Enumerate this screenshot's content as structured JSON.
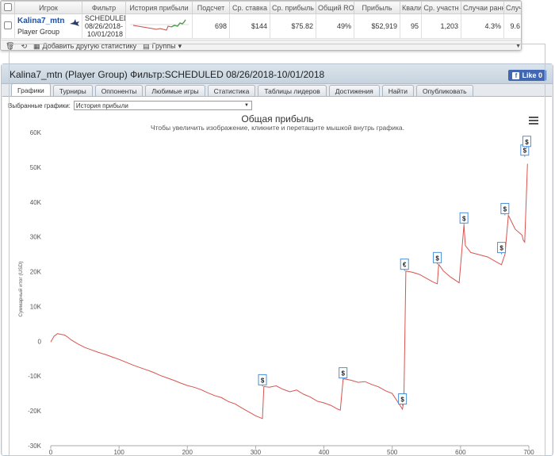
{
  "table": {
    "headers": [
      "",
      "Игрок",
      "Фильтр",
      "История прибыли",
      "Подсчет",
      "Ср. ставка",
      "Ср. прибыль",
      "Общий ROI",
      "Прибыль",
      "Квали",
      "Ср. участн",
      "Случаи ранн",
      "Случаи п"
    ],
    "row": {
      "player_name": "Kalina7_mtn",
      "player_group": "Player Group",
      "filter_line1": "SCHEDULED",
      "filter_line2": "08/26/2018-",
      "filter_line3": "10/01/2018",
      "count": "698",
      "avg_stake": "$144",
      "avg_profit": "$75.82",
      "roi": "49%",
      "profit": "$52,919",
      "quali": "95",
      "avg_entrants": "1,203",
      "early": "4.3%",
      "late": "9.6"
    },
    "toolbar": {
      "add_stats": "Добавить другую статистику",
      "groups": "Группы"
    }
  },
  "panel": {
    "title": "Kalina7_mtn (Player Group) Фильтр:SCHEDULED 08/26/2018-10/01/2018",
    "like_label": "Like 0",
    "fb_letter": "f",
    "tabs": [
      "Графики",
      "Турниры",
      "Оппоненты",
      "Любимые игры",
      "Статистика",
      "Таблицы лидеров",
      "Достижения",
      "Найти",
      "Опубликовать"
    ],
    "selector_label": "Выбранные графики:",
    "selector_value": "История прибыли"
  },
  "chart_data": {
    "type": "line",
    "title": "Общая прибыль",
    "subtitle": "Чтобы увеличить изображение, кликните и перетащите мышкой внутрь графика.",
    "ylabel": "Суммарный итог (USD)",
    "xlim": [
      0,
      700
    ],
    "ylim": [
      -30000,
      60000
    ],
    "xticks": [
      0,
      100,
      200,
      300,
      400,
      500,
      600,
      700
    ],
    "yticks": [
      -30000,
      -20000,
      -10000,
      0,
      10000,
      20000,
      30000,
      40000,
      50000,
      60000
    ],
    "ytick_labels": [
      "-30K",
      "-20K",
      "-10K",
      "0",
      "10K",
      "20K",
      "30K",
      "40K",
      "50K",
      "60K"
    ],
    "line_color": "#d9534f",
    "series": [
      {
        "x": [
          0,
          5,
          10,
          15,
          20,
          25,
          30,
          40,
          50,
          60,
          70,
          80,
          90,
          100,
          110,
          120,
          130,
          140,
          150,
          160,
          170,
          180,
          190,
          200,
          210,
          220,
          230,
          240,
          250,
          260,
          270,
          280,
          290,
          300,
          310,
          312,
          320,
          330,
          340,
          350,
          360,
          370,
          380,
          390,
          400,
          410,
          420,
          424,
          428,
          430,
          440,
          450,
          460,
          470,
          480,
          490,
          500,
          510,
          515,
          517,
          520,
          530,
          540,
          550,
          560,
          566,
          568,
          575,
          585,
          598,
          605,
          607,
          615,
          625,
          640,
          655,
          660,
          665,
          670,
          680,
          690,
          692,
          694,
          698
        ],
        "y": [
          -200,
          1500,
          2200,
          2000,
          1800,
          1200,
          400,
          -800,
          -1800,
          -2500,
          -3200,
          -3800,
          -4500,
          -5200,
          -6000,
          -6800,
          -7500,
          -8200,
          -8900,
          -9800,
          -10500,
          -11200,
          -12000,
          -12700,
          -13200,
          -13900,
          -14800,
          -15600,
          -16200,
          -17300,
          -18000,
          -19200,
          -20300,
          -21400,
          -22200,
          -13000,
          -13200,
          -12800,
          -13800,
          -14500,
          -14000,
          -15200,
          -16000,
          -17200,
          -17700,
          -18400,
          -19500,
          -19800,
          -11000,
          -10800,
          -11200,
          -11800,
          -11600,
          -12400,
          -13100,
          -14200,
          -15000,
          -18000,
          -19500,
          -17000,
          20200,
          19800,
          19200,
          18100,
          17000,
          16500,
          22100,
          20200,
          18500,
          16800,
          33500,
          27500,
          25500,
          25000,
          24200,
          22500,
          22000,
          25000,
          36200,
          32200,
          30500,
          29000,
          28500,
          51000
        ]
      }
    ],
    "markers": [
      {
        "x": 310,
        "y": -13000,
        "label": "$"
      },
      {
        "x": 428,
        "y": -11000,
        "label": "$"
      },
      {
        "x": 515,
        "y": -18500,
        "label": "$"
      },
      {
        "x": 518,
        "y": 20200,
        "label": "€"
      },
      {
        "x": 566,
        "y": 22100,
        "label": "$"
      },
      {
        "x": 605,
        "y": 33500,
        "label": "$"
      },
      {
        "x": 660,
        "y": 25000,
        "label": "$"
      },
      {
        "x": 665,
        "y": 36200,
        "label": "$"
      },
      {
        "x": 694,
        "y": 53000,
        "label": "$"
      },
      {
        "x": 697,
        "y": 55500,
        "label": "$"
      }
    ]
  }
}
